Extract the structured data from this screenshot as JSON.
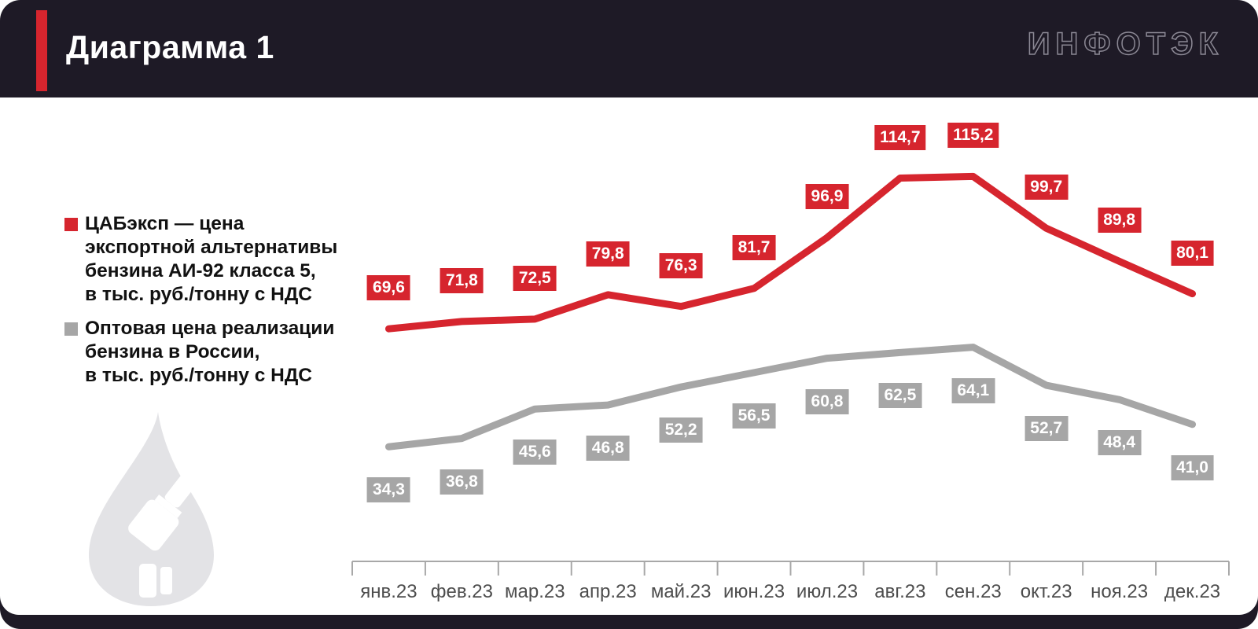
{
  "header": {
    "title": "Диаграмма 1",
    "logo_text": "ИНФОТЭК"
  },
  "colors": {
    "header_bg": "#1e1a26",
    "accent_red": "#d6252e",
    "series_gray": "#a6a6a6",
    "axis": "#a8a8a8",
    "axis_text": "#4d4d4d",
    "watermark_gray": "#e3e3e6"
  },
  "legend": {
    "items": [
      {
        "label": "ЦАБэксп — цена\nэкспортной альтернативы\nбензина АИ-92 класса 5,\nв тыс. руб./тонну с НДС",
        "color": "#d6252e"
      },
      {
        "label": "Оптовая цена реализации\nбензина в России,\nв тыс. руб./тонну с НДС",
        "color": "#a6a6a6"
      }
    ]
  },
  "chart_data": {
    "type": "line",
    "title": "Диаграмма 1",
    "categories": [
      "янв.23",
      "фев.23",
      "мар.23",
      "апр.23",
      "май.23",
      "июн.23",
      "июл.23",
      "авг.23",
      "сен.23",
      "окт.23",
      "ноя.23",
      "дек.23"
    ],
    "series": [
      {
        "name": "ЦАБэксп — цена экспортной альтернативы бензина АИ-92 класса 5, в тыс. руб./тонну с НДС",
        "color": "#d6252e",
        "values": [
          69.6,
          71.8,
          72.5,
          79.8,
          76.3,
          81.7,
          96.9,
          114.7,
          115.2,
          99.7,
          89.8,
          80.1
        ]
      },
      {
        "name": "Оптовая цена реализации бензина в России, в тыс. руб./тонну с НДС",
        "color": "#a6a6a6",
        "values": [
          34.3,
          36.8,
          45.6,
          46.8,
          52.2,
          56.5,
          60.8,
          62.5,
          64.1,
          52.7,
          48.4,
          41.0
        ]
      }
    ],
    "xlabel": "",
    "ylabel": "тыс. руб./тонну с НДС",
    "ylim": [
      0,
      140
    ],
    "decimal_separator": ",",
    "data_labels": true,
    "grid": false,
    "y_axis_visible": false,
    "legend_position": "left"
  }
}
